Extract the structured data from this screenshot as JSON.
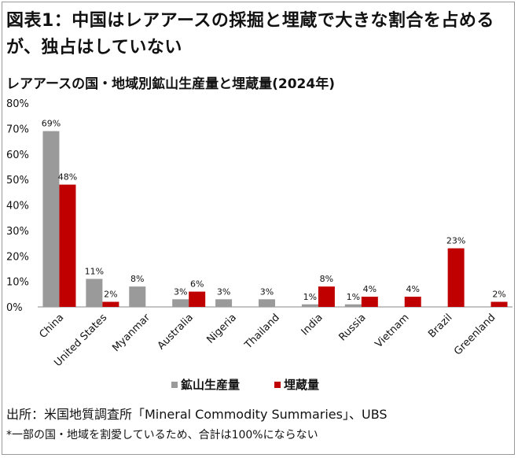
{
  "header": {
    "title": "図表1：中国はレアアースの採掘と埋蔵で大きな割合を占めるが、独占はしていない",
    "subtitle": "レアアースの国・地域別鉱山生産量と埋蔵量(2024年)"
  },
  "chart_data": {
    "type": "bar",
    "categories": [
      "China",
      "United States",
      "Myanmar",
      "Australia",
      "Nigeria",
      "Thailand",
      "India",
      "Russia",
      "Vietnam",
      "Brazil",
      "Greenland"
    ],
    "series": [
      {
        "name": "鉱山生産量",
        "color": "#9a9a9a",
        "values": [
          69,
          11,
          8,
          3,
          3,
          3,
          1,
          1,
          null,
          null,
          null
        ]
      },
      {
        "name": "埋蔵量",
        "color": "#c00000",
        "values": [
          48,
          2,
          null,
          6,
          null,
          null,
          8,
          4,
          4,
          23,
          2
        ]
      }
    ],
    "ylim": [
      0,
      80
    ],
    "yticks": [
      "0%",
      "10%",
      "20%",
      "30%",
      "40%",
      "50%",
      "60%",
      "70%",
      "80%"
    ],
    "ylabel": "",
    "xlabel": "",
    "value_suffix": "%"
  },
  "legend": {
    "production_label": "鉱山生産量",
    "reserves_label": "埋蔵量"
  },
  "footer": {
    "source": "出所：米国地質調査所「Mineral Commodity Summaries」、UBS",
    "note": "*一部の国・地域を割愛しているため、合計は100%にならない"
  }
}
